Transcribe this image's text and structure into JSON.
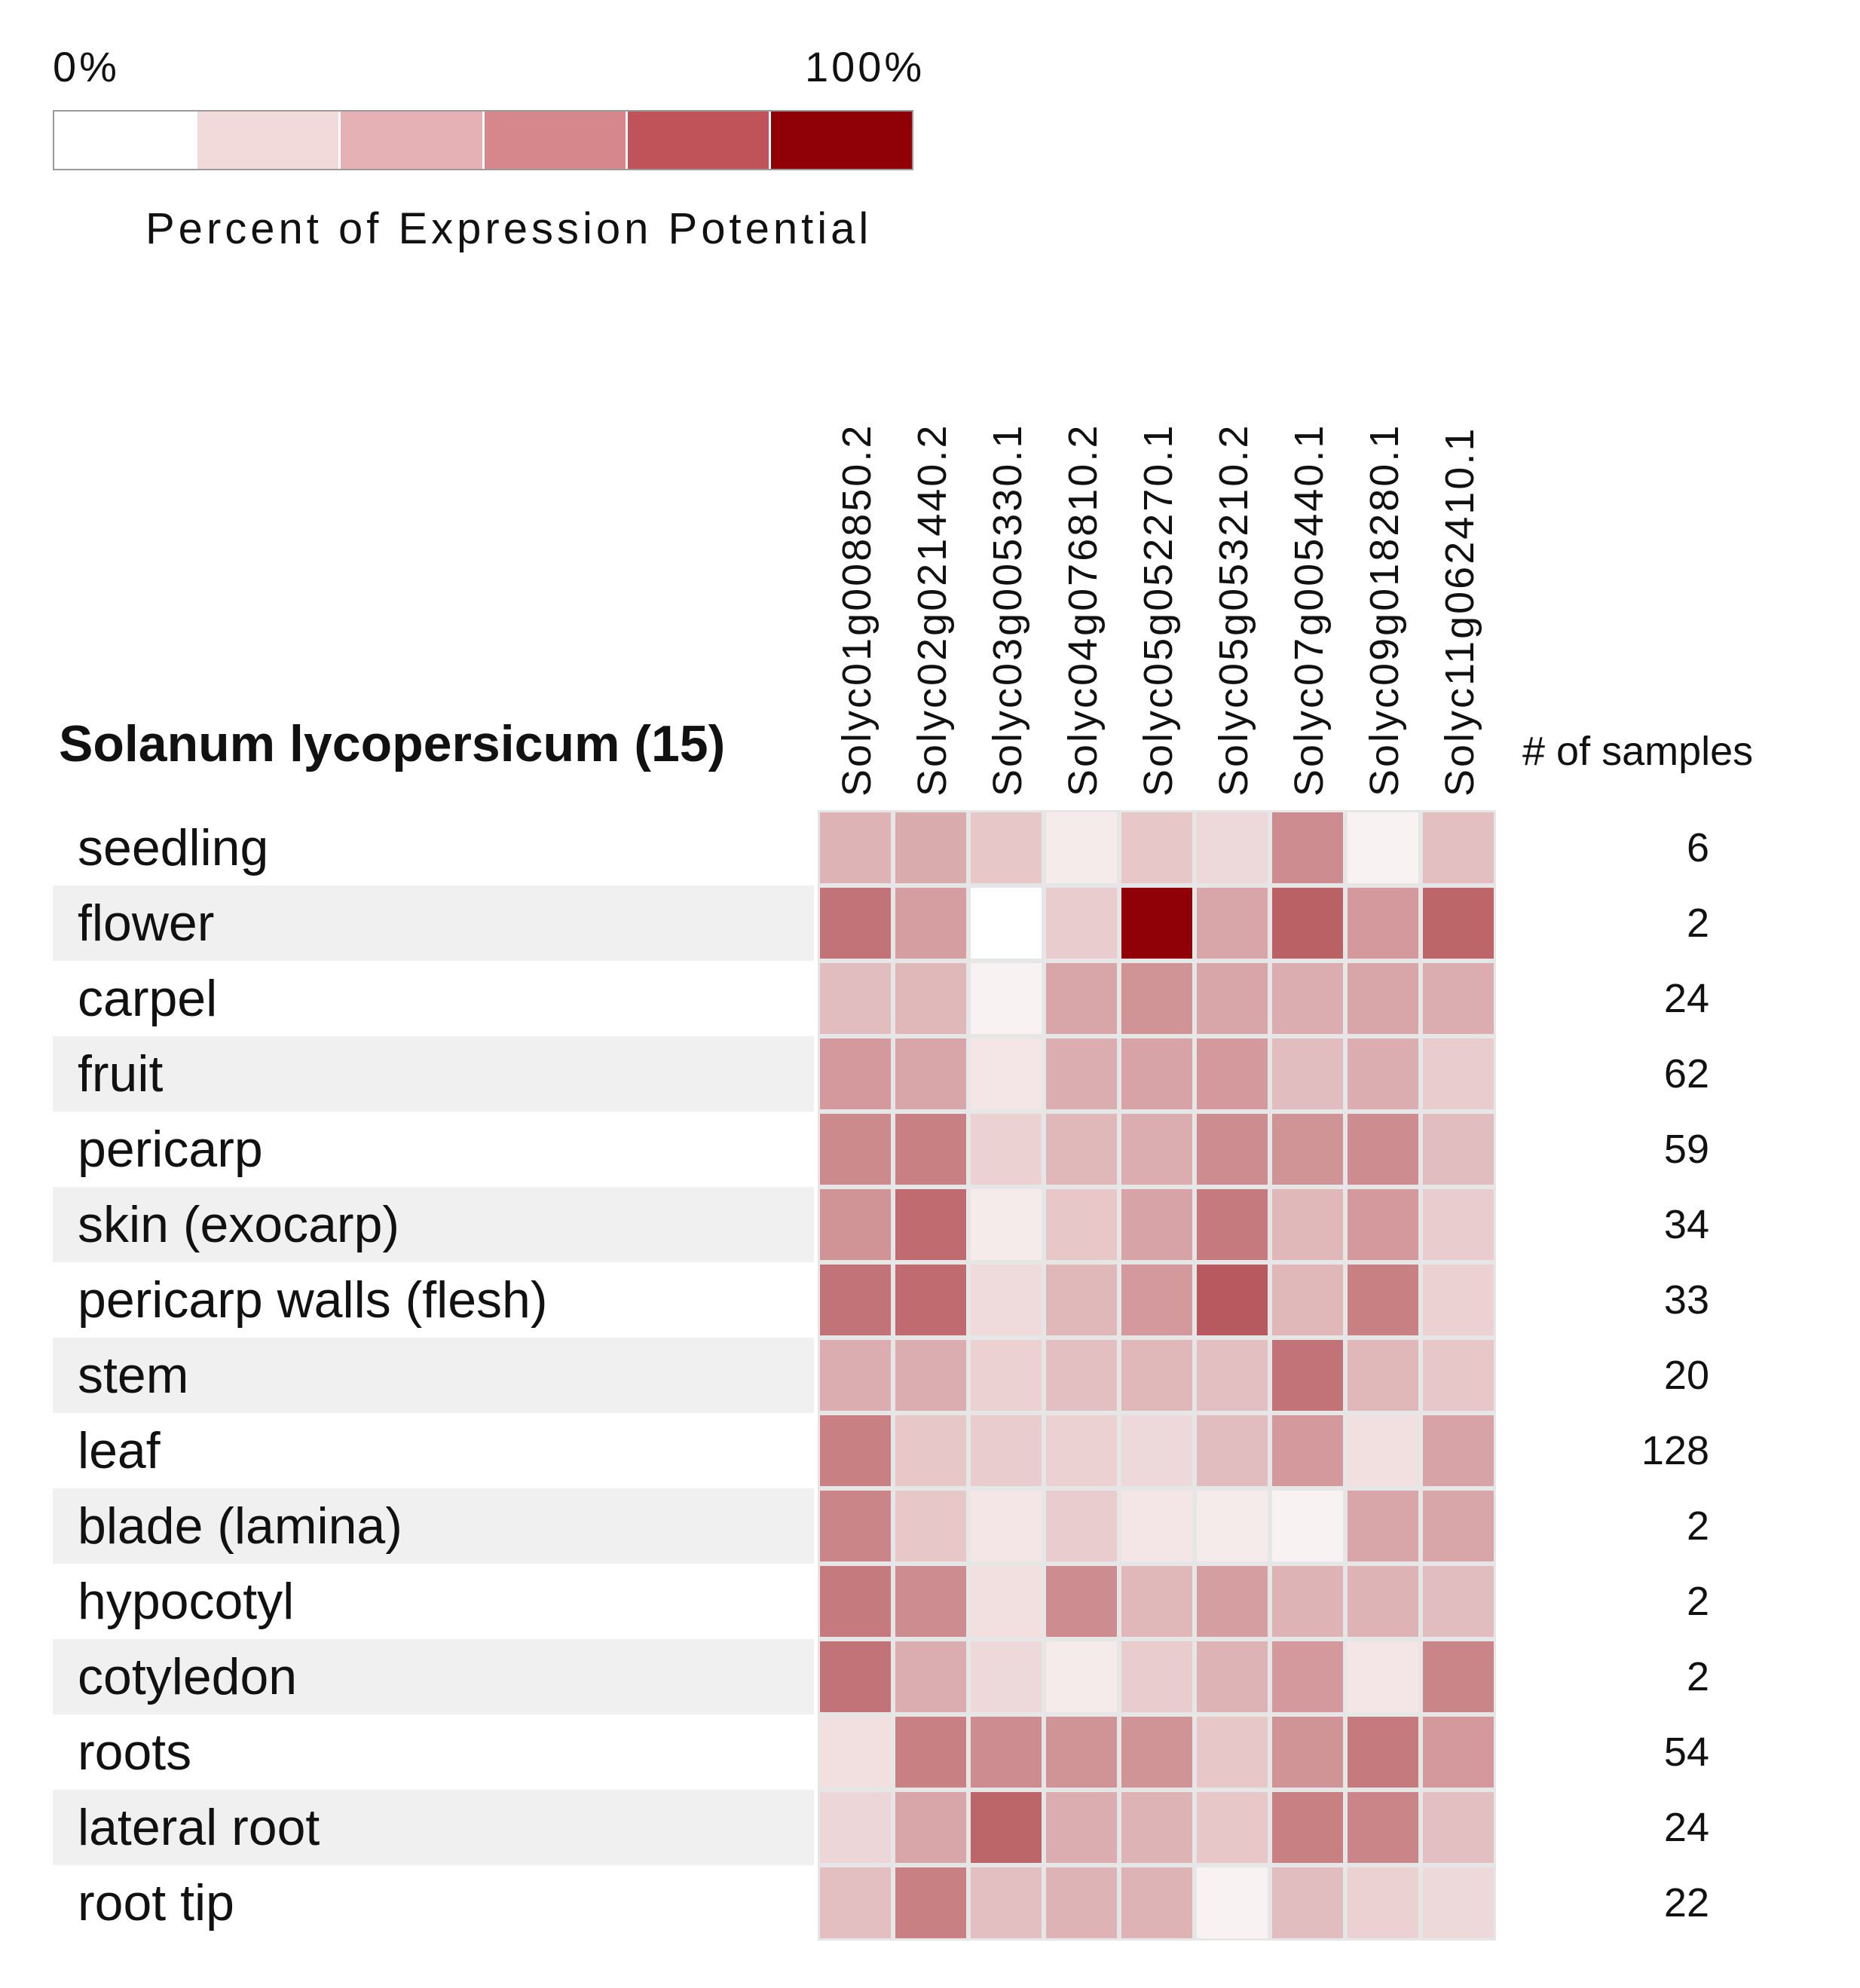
{
  "legend": {
    "min_label": "0%",
    "max_label": "100%",
    "title": "Percent of Expression Potential",
    "colors": [
      "#ffffff",
      "#f2d9da",
      "#e5b1b4",
      "#d6878c",
      "#c0535a",
      "#900007"
    ],
    "low_color": "#ffffff",
    "high_color": "#900007"
  },
  "samples_header": "# of samples",
  "chart_data": {
    "type": "heatmap",
    "title": "Solanum lycopersicum (15)",
    "columns": [
      "Solyc01g008850.2",
      "Solyc02g021440.2",
      "Solyc03g005330.1",
      "Solyc04g076810.2",
      "Solyc05g052270.1",
      "Solyc05g053210.2",
      "Solyc07g005440.1",
      "Solyc09g018280.1",
      "Solyc11g062410.1"
    ],
    "rows": [
      "seedling",
      "flower",
      "carpel",
      "fruit",
      "pericarp",
      "skin (exocarp)",
      "pericarp walls (flesh)",
      "stem",
      "leaf",
      "blade (lamina)",
      "hypocotyl",
      "cotyledon",
      "roots",
      "lateral root",
      "root tip"
    ],
    "sample_counts": [
      "6",
      "2",
      "24",
      "62",
      "59",
      "34",
      "33",
      "20",
      "128",
      "2",
      "2",
      "2",
      "54",
      "24",
      "22"
    ],
    "value_range": [
      0,
      100
    ],
    "values": [
      [
        30,
        33,
        22,
        8,
        22,
        15,
        45,
        5,
        25
      ],
      [
        55,
        38,
        0,
        20,
        100,
        35,
        62,
        40,
        60
      ],
      [
        26,
        28,
        5,
        35,
        42,
        35,
        32,
        35,
        32
      ],
      [
        40,
        35,
        10,
        32,
        36,
        40,
        26,
        32,
        20
      ],
      [
        46,
        50,
        18,
        28,
        32,
        45,
        42,
        45,
        26
      ],
      [
        42,
        58,
        8,
        22,
        36,
        52,
        28,
        40,
        20
      ],
      [
        55,
        58,
        14,
        28,
        40,
        65,
        28,
        50,
        18
      ],
      [
        32,
        32,
        18,
        25,
        28,
        25,
        55,
        28,
        22
      ],
      [
        50,
        22,
        20,
        18,
        15,
        26,
        40,
        12,
        36
      ],
      [
        48,
        22,
        10,
        20,
        10,
        8,
        5,
        35,
        35
      ],
      [
        52,
        45,
        12,
        45,
        28,
        38,
        30,
        30,
        26
      ],
      [
        55,
        32,
        15,
        8,
        20,
        30,
        40,
        10,
        48
      ],
      [
        12,
        50,
        45,
        42,
        42,
        22,
        42,
        52,
        40
      ],
      [
        16,
        35,
        60,
        32,
        30,
        22,
        50,
        48,
        25
      ],
      [
        25,
        50,
        25,
        30,
        30,
        5,
        26,
        18,
        15
      ]
    ]
  }
}
